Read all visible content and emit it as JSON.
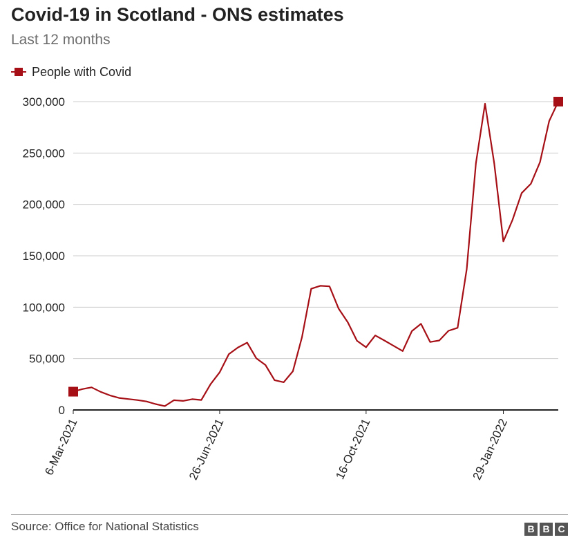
{
  "title": "Covid-19 in Scotland - ONS estimates",
  "subtitle": "Last 12 months",
  "source": "Source: Office for National Statistics",
  "logo_text": "BBC",
  "colors": {
    "series": "#a50f15",
    "grid": "#cccccc",
    "axis": "#222222",
    "text": "#222222"
  },
  "chart_data": {
    "type": "line",
    "legend": "top-left",
    "grid": true,
    "ylim": [
      0,
      300000
    ],
    "y_ticks": [
      "0",
      "50,000",
      "100,000",
      "150,000",
      "200,000",
      "250,000",
      "300,000"
    ],
    "x_ticks": [
      "6-Mar-2021",
      "26-Jun-2021",
      "16-Oct-2021",
      "29-Jan-2022"
    ],
    "series": [
      {
        "name": "People with Covid",
        "values": [
          17800,
          20300,
          22000,
          17600,
          14200,
          11700,
          10600,
          9600,
          8300,
          5700,
          3800,
          9500,
          8800,
          10500,
          9700,
          25000,
          36600,
          54300,
          60800,
          65500,
          50300,
          43700,
          29000,
          27000,
          37700,
          70900,
          117900,
          120800,
          120300,
          98600,
          85300,
          67300,
          61000,
          72500,
          67600,
          62400,
          57300,
          76700,
          83800,
          66100,
          67600,
          77000,
          79900,
          137000,
          240000,
          298000,
          240000,
          164000,
          185000,
          211000,
          220000,
          241000,
          281000,
          300000
        ]
      }
    ]
  }
}
